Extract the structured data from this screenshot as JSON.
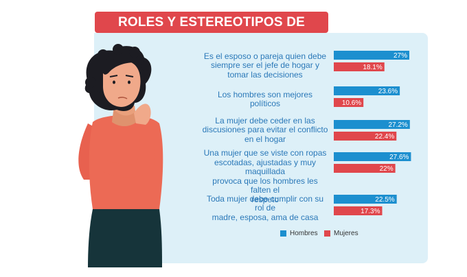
{
  "chart_data": {
    "type": "bar",
    "orientation": "horizontal",
    "title": "ROLES Y ESTEREOTIPOS DE GÉNERO",
    "categories": [
      "Es el esposo o pareja quien debe siempre ser el jefe de hogar y tomar las decisiones",
      "Los hombres son mejores políticos",
      "La mujer debe ceder en las discusiones para evitar el conflicto en el hogar",
      "Una mujer que se viste con ropas escotadas, ajustadas y muy maquillada provoca que los hombres les falten el respeto",
      "Toda mujer debe cumplir con su rol de madre, esposa, ama de casa"
    ],
    "category_lines": [
      [
        "Es el esposo o pareja quien debe",
        "siempre ser el jefe de hogar y",
        "tomar las decisiones"
      ],
      [
        "Los hombres son mejores",
        "políticos"
      ],
      [
        "La mujer debe ceder en las",
        "discusiones para evitar el conflicto",
        "en el hogar"
      ],
      [
        "Una mujer que se viste con ropas",
        "escotadas, ajustadas y muy maquillada",
        "provoca que los hombres les falten el",
        "respeto"
      ],
      [
        "Toda mujer debe cumplir con su rol de",
        "madre, esposa, ama de casa"
      ]
    ],
    "series": [
      {
        "name": "Hombres",
        "color": "#1c8fcf",
        "values": [
          27,
          23.6,
          27.2,
          27.6,
          22.5
        ],
        "labels": [
          "27%",
          "23.6%",
          "27.2%",
          "27.6%",
          "22.5%"
        ]
      },
      {
        "name": "Mujeres",
        "color": "#e0474c",
        "values": [
          18.1,
          10.6,
          22.4,
          22,
          17.3
        ],
        "labels": [
          "18.1%",
          "10.6%",
          "22.4%",
          "22%",
          "17.3%"
        ]
      }
    ],
    "xlim": [
      0,
      27
    ],
    "grid": false,
    "legend": "bottom"
  },
  "colors": {
    "title_bg": "#e0474c",
    "panel_bg": "#ddf0f8",
    "label_text": "#2a78b8"
  }
}
